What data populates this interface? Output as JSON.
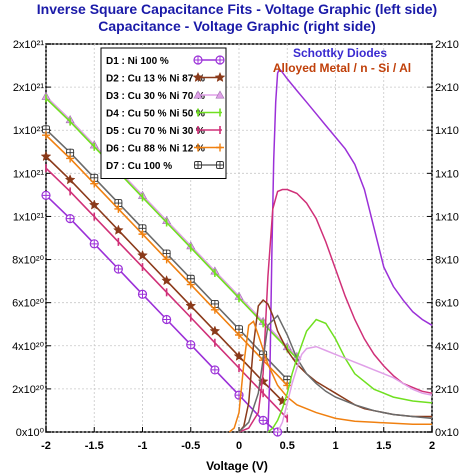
{
  "title_line1": "Inverse Square Capacitance Fits - Voltage Graphic (left side)",
  "title_line2": "Capacitance - Voltage Graphic (right side)",
  "annotation_line1": "Schottky Diodes",
  "annotation_line2": "Alloyed Metal / n - Si / Al",
  "xlabel": "Voltage (V)",
  "colors": {
    "title": "#1a1aa8",
    "annotation1": "#3a2ad0",
    "annotation2": "#c0400a",
    "D1": "#9b30d8",
    "D2": "#8b3a1a",
    "D3": "#e0a0e8",
    "D4": "#70e020",
    "D5": "#d03078",
    "D6": "#f08010",
    "D7": "#6a6a6a"
  },
  "chart_data": {
    "type": "line",
    "xlim": [
      -2,
      2
    ],
    "x_ticks": [
      "-2",
      "-1.5",
      "-1",
      "-0.5",
      "0",
      "0.5",
      "1",
      "1.5",
      "2"
    ],
    "left_y_ticks": [
      "0x10⁰",
      "2x10²⁰",
      "4x10²⁰",
      "6x10²⁰",
      "8x10²⁰",
      "1x10²¹",
      "1x10²¹",
      "1x10²¹",
      "2x10²¹",
      "2x10²¹"
    ],
    "right_y_ticks_visible": [
      "2x10",
      "2x10",
      "1x10",
      "1x10",
      "1x10",
      "8x10",
      "6x10",
      "4x10",
      "2x10",
      "0x10"
    ],
    "left_ylim": [
      0,
      2e+21
    ],
    "right_ylim": [
      0,
      2.0
    ],
    "legend": [
      {
        "id": "D1",
        "label": "D1 : Ni 100 %",
        "marker": "circle-plus"
      },
      {
        "id": "D2",
        "label": "D2 : Cu 13 % Ni 87 %",
        "marker": "star"
      },
      {
        "id": "D3",
        "label": "D3 : Cu 30 % Ni 70 %",
        "marker": "triangle"
      },
      {
        "id": "D4",
        "label": "D4 : Cu 50 % Ni 50 %",
        "marker": "bar"
      },
      {
        "id": "D5",
        "label": "D5 : Cu 70 % Ni 30 %",
        "marker": "tick"
      },
      {
        "id": "D6",
        "label": "D6 : Cu 88 % Ni 12 %",
        "marker": "cross"
      },
      {
        "id": "D7",
        "label": "D7 : Cu 100 %",
        "marker": "square-plus"
      }
    ],
    "inverse_square_fits_left_axis": [
      {
        "id": "D3",
        "x": [
          -2,
          -1.75,
          -1.5,
          -1.25,
          -1,
          -0.75,
          -0.5,
          -0.25,
          0,
          0.25,
          0.5,
          0.6
        ],
        "y": [
          1.73e+21,
          1.61e+21,
          1.48e+21,
          1.35e+21,
          1.22e+21,
          1.09e+21,
          9.6e+20,
          8.3e+20,
          7e+20,
          5.7e+20,
          4.4e+20,
          3.9e+20
        ]
      },
      {
        "id": "D4",
        "x": [
          -2,
          -1.75,
          -1.5,
          -1.25,
          -1,
          -0.75,
          -0.5,
          -0.25,
          0,
          0.25,
          0.5,
          0.6
        ],
        "y": [
          1.72e+21,
          1.6e+21,
          1.47e+21,
          1.34e+21,
          1.21e+21,
          1.08e+21,
          9.5e+20,
          8.2e+20,
          6.9e+20,
          5.6e+20,
          4.3e+20,
          3.8e+20
        ]
      },
      {
        "id": "D7",
        "x": [
          -2,
          -1.75,
          -1.5,
          -1.25,
          -1,
          -0.75,
          -0.5,
          -0.25,
          0,
          0.25,
          0.5
        ],
        "y": [
          1.56e+21,
          1.44e+21,
          1.31e+21,
          1.18e+21,
          1.05e+21,
          9.2e+20,
          7.9e+20,
          6.6e+20,
          5.3e+20,
          4e+20,
          2.7e+20
        ]
      },
      {
        "id": "D6",
        "x": [
          -2,
          -1.75,
          -1.5,
          -1.25,
          -1,
          -0.75,
          -0.5,
          -0.25,
          0,
          0.25,
          0.5
        ],
        "y": [
          1.53e+21,
          1.41e+21,
          1.28e+21,
          1.15e+21,
          1.02e+21,
          8.9e+20,
          7.6e+20,
          6.3e+20,
          5e+20,
          3.7e+20,
          2.4e+20
        ]
      },
      {
        "id": "D2",
        "x": [
          -2,
          -1.75,
          -1.5,
          -1.25,
          -1,
          -0.75,
          -0.5,
          -0.25,
          0,
          0.25,
          0.45
        ],
        "y": [
          1.42e+21,
          1.3e+21,
          1.17e+21,
          1.04e+21,
          9.1e+20,
          7.8e+20,
          6.5e+20,
          5.2e+20,
          3.9e+20,
          2.6e+20,
          1.6e+20
        ]
      },
      {
        "id": "D5",
        "x": [
          -2,
          -1.75,
          -1.5,
          -1.25,
          -1,
          -0.75,
          -0.5,
          -0.25,
          0,
          0.25,
          0.5
        ],
        "y": [
          1.36e+21,
          1.24e+21,
          1.11e+21,
          9.8e+20,
          8.5e+20,
          7.2e+20,
          5.9e+20,
          4.6e+20,
          3.3e+20,
          2e+20,
          7e+19
        ]
      },
      {
        "id": "D1",
        "x": [
          -2,
          -1.75,
          -1.5,
          -1.25,
          -1,
          -0.75,
          -0.5,
          -0.25,
          0,
          0.25,
          0.4
        ],
        "y": [
          1.22e+21,
          1.1e+21,
          9.7e+20,
          8.4e+20,
          7.1e+20,
          5.8e+20,
          4.5e+20,
          3.2e+20,
          1.9e+20,
          6e+19,
          0.0
        ]
      }
    ],
    "capacitance_curves_right_axis": [
      {
        "id": "D1",
        "x": [
          0.3,
          0.32,
          0.34,
          0.36,
          0.38,
          0.4,
          0.42,
          0.44,
          0.5,
          0.6,
          0.7,
          0.8,
          0.9,
          1.0,
          1.1,
          1.2,
          1.3,
          1.4,
          1.5,
          1.6,
          1.7,
          1.8,
          1.9,
          2.0
        ],
        "y": [
          0.0,
          0.3,
          0.9,
          1.4,
          1.7,
          1.85,
          1.87,
          1.86,
          1.82,
          1.76,
          1.7,
          1.64,
          1.58,
          1.52,
          1.46,
          1.38,
          1.25,
          1.05,
          0.85,
          0.75,
          0.68,
          0.62,
          0.58,
          0.55
        ]
      },
      {
        "id": "D5",
        "x": [
          0.0,
          0.1,
          0.2,
          0.25,
          0.3,
          0.35,
          0.4,
          0.45,
          0.5,
          0.6,
          0.7,
          0.8,
          0.9,
          1.0,
          1.1,
          1.2,
          1.3,
          1.4,
          1.5,
          1.6,
          1.7,
          1.8,
          1.9,
          2.0
        ],
        "y": [
          0.0,
          0.02,
          0.1,
          0.3,
          0.8,
          1.15,
          1.24,
          1.25,
          1.25,
          1.23,
          1.18,
          1.1,
          0.98,
          0.84,
          0.7,
          0.58,
          0.48,
          0.4,
          0.34,
          0.29,
          0.25,
          0.23,
          0.21,
          0.2
        ]
      },
      {
        "id": "D2",
        "x": [
          0.0,
          0.05,
          0.1,
          0.15,
          0.2,
          0.25,
          0.3,
          0.35,
          0.4,
          0.5,
          0.6,
          0.7,
          0.8,
          0.9,
          1.0,
          1.1,
          1.2,
          1.3,
          1.4,
          1.5,
          1.6,
          1.7,
          1.8,
          2.0
        ],
        "y": [
          0.0,
          0.03,
          0.15,
          0.45,
          0.65,
          0.68,
          0.66,
          0.6,
          0.52,
          0.42,
          0.35,
          0.3,
          0.26,
          0.23,
          0.2,
          0.17,
          0.14,
          0.12,
          0.11,
          0.1,
          0.09,
          0.085,
          0.08,
          0.08
        ]
      },
      {
        "id": "D6",
        "x": [
          -0.1,
          -0.05,
          0.0,
          0.05,
          0.1,
          0.15,
          0.2,
          0.3,
          0.4,
          0.5,
          0.6,
          0.8,
          1.0,
          1.2,
          1.4,
          1.6,
          1.8,
          2.0
        ],
        "y": [
          0.0,
          0.02,
          0.1,
          0.35,
          0.55,
          0.57,
          0.5,
          0.35,
          0.24,
          0.18,
          0.14,
          0.1,
          0.07,
          0.055,
          0.05,
          0.045,
          0.04,
          0.04
        ]
      },
      {
        "id": "D7",
        "x": [
          0.0,
          0.1,
          0.2,
          0.3,
          0.4,
          0.5,
          0.6,
          0.7,
          0.8,
          0.9,
          1.0,
          1.2,
          1.4,
          1.6,
          1.8,
          2.0
        ],
        "y": [
          0.0,
          0.05,
          0.2,
          0.55,
          0.6,
          0.5,
          0.38,
          0.3,
          0.25,
          0.21,
          0.18,
          0.14,
          0.11,
          0.09,
          0.08,
          0.07
        ]
      },
      {
        "id": "D4",
        "x": [
          0.3,
          0.35,
          0.4,
          0.45,
          0.5,
          0.55,
          0.6,
          0.65,
          0.7,
          0.8,
          0.9,
          1.0,
          1.1,
          1.2,
          1.4,
          1.6,
          1.8,
          2.0
        ],
        "y": [
          0.0,
          0.02,
          0.06,
          0.12,
          0.2,
          0.3,
          0.38,
          0.45,
          0.52,
          0.58,
          0.56,
          0.48,
          0.38,
          0.3,
          0.22,
          0.18,
          0.16,
          0.15
        ]
      },
      {
        "id": "D3",
        "x": [
          0.4,
          0.45,
          0.5,
          0.55,
          0.6,
          0.65,
          0.7,
          0.8,
          0.9,
          1.0,
          1.1,
          1.2,
          1.3,
          1.4,
          1.5,
          1.6,
          1.7,
          1.8,
          1.9,
          2.0
        ],
        "y": [
          0.0,
          0.05,
          0.15,
          0.25,
          0.33,
          0.4,
          0.43,
          0.44,
          0.42,
          0.4,
          0.38,
          0.36,
          0.34,
          0.32,
          0.3,
          0.28,
          0.25,
          0.22,
          0.2,
          0.19
        ]
      }
    ]
  }
}
